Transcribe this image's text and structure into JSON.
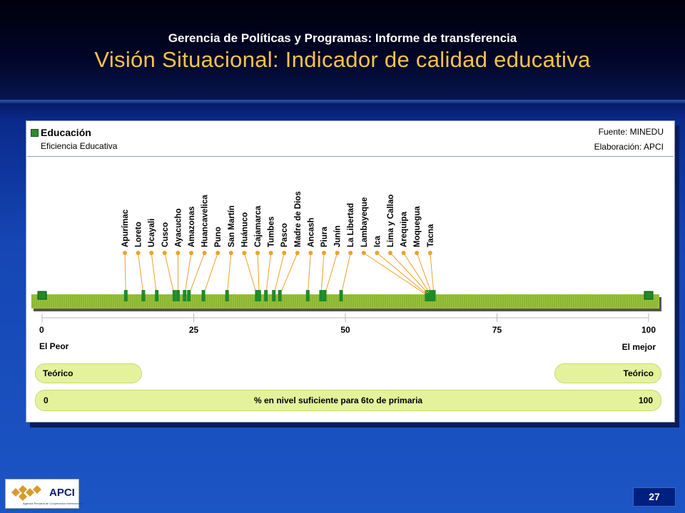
{
  "header": {
    "subtitle": "Gerencia de Políticas y Programas: Informe de transferencia",
    "title": "Visión Situacional: Indicador de calidad educativa"
  },
  "panel": {
    "title": "Educación",
    "subtitle": "Eficiencia Educativa",
    "source": "Fuente: MINEDU",
    "elaboration": "Elaboración: APCI"
  },
  "chart_data": {
    "type": "scatter",
    "xlim": [
      0,
      100
    ],
    "ticks": [
      0,
      25,
      50,
      75,
      100
    ],
    "tick_labels": [
      "0",
      "25",
      "50",
      "75",
      "100"
    ],
    "left_label": "El Peor",
    "right_label": "El mejor",
    "theoretical_left": "Teórico",
    "theoretical_right": "Teórico",
    "theoretical_range": [
      0,
      100
    ],
    "axis_min_label": "0",
    "axis_max_label": "100",
    "axis_caption": "% en nivel suficiente para 6to de primaria",
    "points": [
      {
        "label": "Apurímac",
        "value": 13.8
      },
      {
        "label": "Loreto",
        "value": 16.7
      },
      {
        "label": "Ucayali",
        "value": 18.9
      },
      {
        "label": "Cusco",
        "value": 21.8
      },
      {
        "label": "Ayacucho",
        "value": 22.4
      },
      {
        "label": "Amazonas",
        "value": 23.5
      },
      {
        "label": "Huancavelica",
        "value": 24.2
      },
      {
        "label": "Puno",
        "value": 26.6
      },
      {
        "label": "San Martín",
        "value": 30.5
      },
      {
        "label": "Huánuco",
        "value": 35.4
      },
      {
        "label": "Cajamarca",
        "value": 35.8
      },
      {
        "label": "Tumbes",
        "value": 36.9
      },
      {
        "label": "Pasco",
        "value": 38.2
      },
      {
        "label": "Madre de Dios",
        "value": 39.2
      },
      {
        "label": "Ancash",
        "value": 43.8
      },
      {
        "label": "Piura",
        "value": 46.0
      },
      {
        "label": "Junín",
        "value": 46.6
      },
      {
        "label": "La Libertad",
        "value": 49.3
      },
      {
        "label": "Lambayeque",
        "value": 63.4
      },
      {
        "label": "Ica",
        "value": 63.6
      },
      {
        "label": "Lima y Callao",
        "value": 63.9
      },
      {
        "label": "Arequipa",
        "value": 64.1
      },
      {
        "label": "Moquegua",
        "value": 64.3
      },
      {
        "label": "Tacna",
        "value": 64.6
      }
    ],
    "colors": {
      "band": "#9bc53a",
      "marker": "#1f8a2a",
      "connector": "#f0a028",
      "pill": "#e4f29c"
    }
  },
  "footer": {
    "page_number": "27",
    "logo_text": "APCI",
    "logo_small": "Agencia Peruana de Cooperación Internacional"
  }
}
